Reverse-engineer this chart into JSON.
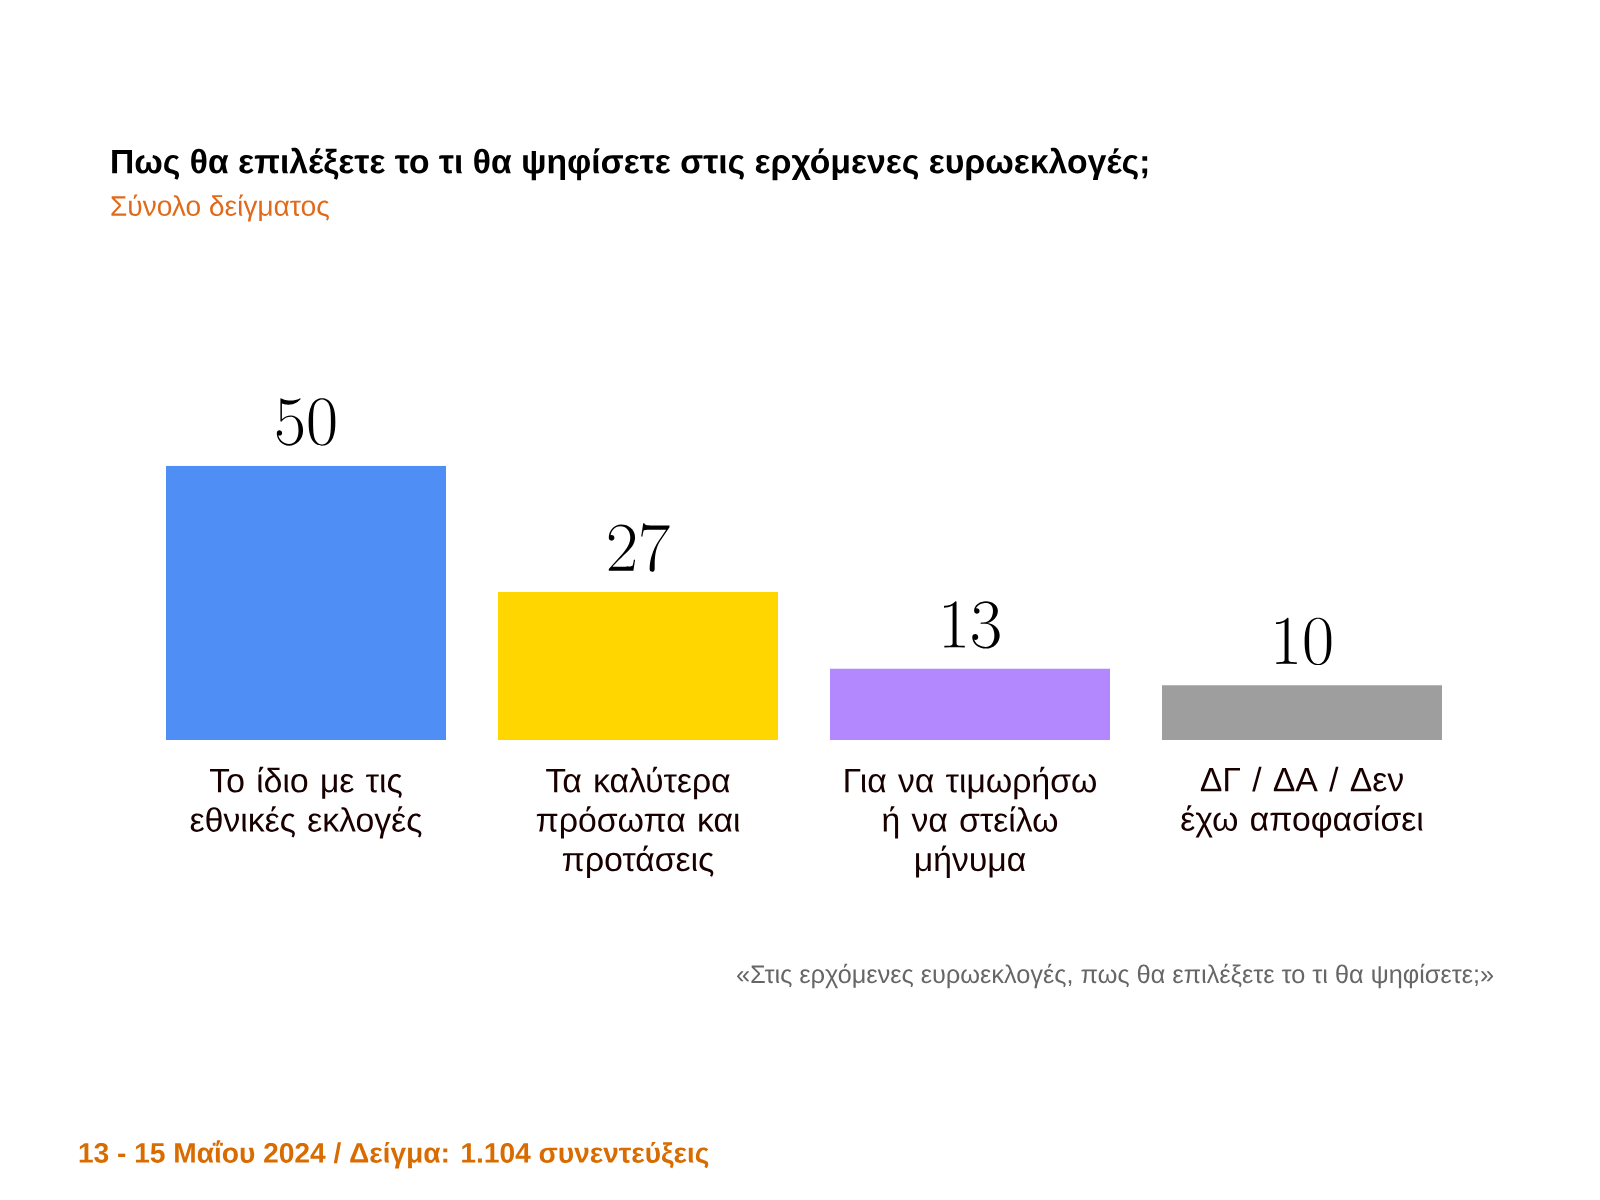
{
  "chart_data": {
    "type": "bar",
    "title": "Πως θα επιλέξετε το τι θα ψηφίσετε στις ερχόμενες ευρωεκλογές;",
    "subtitle": "Σύνολο δείγματος",
    "categories": [
      "Το ίδιο με τις εθνικές εκλογές",
      "Τα καλύτερα πρόσωπα και προτάσεις",
      "Για να τιμωρήσω ή να στείλω μήνυμα",
      "ΔΓ / ΔΑ / Δεν έχω αποφασίσει"
    ],
    "values": [
      50,
      27,
      13,
      10
    ],
    "colors": [
      "#4f8ef5",
      "#ffd600",
      "#b388ff",
      "#9e9e9e"
    ],
    "data_labels": true,
    "annotations": [
      "«Στις ερχόμενες ευρωεκλογές, πως θα επιλέξετε το τι θα ψηφίσετε;»",
      "13 - 15 Μαΐου 2024  /  Δείγμα:  1.104 συνεντεύξεις"
    ]
  }
}
